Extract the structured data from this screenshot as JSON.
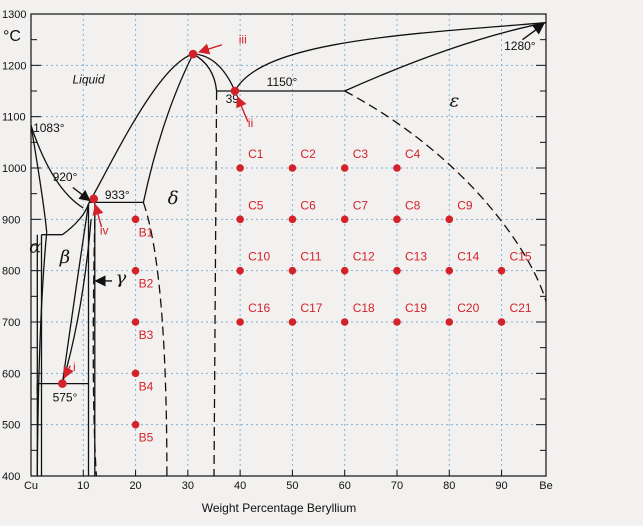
{
  "chart_data": {
    "type": "scatter",
    "title": "",
    "xlabel": "Weight Percentage Beryllium",
    "ylabel": "°C",
    "xlim": [
      0,
      98.5
    ],
    "ylim": [
      400,
      1300
    ],
    "grid": true,
    "x_ticks": [
      "Cu",
      "10",
      "20",
      "30",
      "40",
      "50",
      "60",
      "70",
      "80",
      "90",
      "Be"
    ],
    "y_ticks": [
      "400",
      "500",
      "600",
      "700",
      "800",
      "900",
      "1000",
      "1100",
      "1200",
      "1300"
    ],
    "phase_labels": {
      "liquid": "Liquid",
      "alpha": "α",
      "beta": "β",
      "gamma": "γ",
      "delta": "δ",
      "epsilon": "ε"
    },
    "temperature_labels": {
      "t1083": "1083°",
      "t920": "920°",
      "t933": "933°",
      "t575": "575°",
      "t1150": "1150°",
      "t1280": "1280°",
      "c39": "39"
    },
    "special_points": [
      {
        "label": "i",
        "x": 6,
        "y": 580
      },
      {
        "label": "ii",
        "x": 39,
        "y": 1150
      },
      {
        "label": "iii",
        "x": 31,
        "y": 1222
      },
      {
        "label": "iv",
        "x": 12,
        "y": 940
      }
    ],
    "sample_points": [
      {
        "label": "B1",
        "x": 20,
        "y": 900
      },
      {
        "label": "B2",
        "x": 20,
        "y": 800
      },
      {
        "label": "B3",
        "x": 20,
        "y": 700
      },
      {
        "label": "B4",
        "x": 20,
        "y": 600
      },
      {
        "label": "B5",
        "x": 20,
        "y": 500
      },
      {
        "label": "C1",
        "x": 40,
        "y": 1000
      },
      {
        "label": "C2",
        "x": 50,
        "y": 1000
      },
      {
        "label": "C3",
        "x": 60,
        "y": 1000
      },
      {
        "label": "C4",
        "x": 70,
        "y": 1000
      },
      {
        "label": "C5",
        "x": 40,
        "y": 900
      },
      {
        "label": "C6",
        "x": 50,
        "y": 900
      },
      {
        "label": "C7",
        "x": 60,
        "y": 900
      },
      {
        "label": "C8",
        "x": 70,
        "y": 900
      },
      {
        "label": "C9",
        "x": 80,
        "y": 900
      },
      {
        "label": "C10",
        "x": 40,
        "y": 800
      },
      {
        "label": "C11",
        "x": 50,
        "y": 800
      },
      {
        "label": "C12",
        "x": 60,
        "y": 800
      },
      {
        "label": "C13",
        "x": 70,
        "y": 800
      },
      {
        "label": "C14",
        "x": 80,
        "y": 800
      },
      {
        "label": "C15",
        "x": 90,
        "y": 800
      },
      {
        "label": "C16",
        "x": 40,
        "y": 700
      },
      {
        "label": "C17",
        "x": 50,
        "y": 700
      },
      {
        "label": "C18",
        "x": 60,
        "y": 700
      },
      {
        "label": "C19",
        "x": 70,
        "y": 700
      },
      {
        "label": "C20",
        "x": 80,
        "y": 700
      },
      {
        "label": "C21",
        "x": 90,
        "y": 700
      }
    ],
    "colors": {
      "point": "#d4222a",
      "grid": "#7fb3d8",
      "line": "#111111"
    }
  }
}
